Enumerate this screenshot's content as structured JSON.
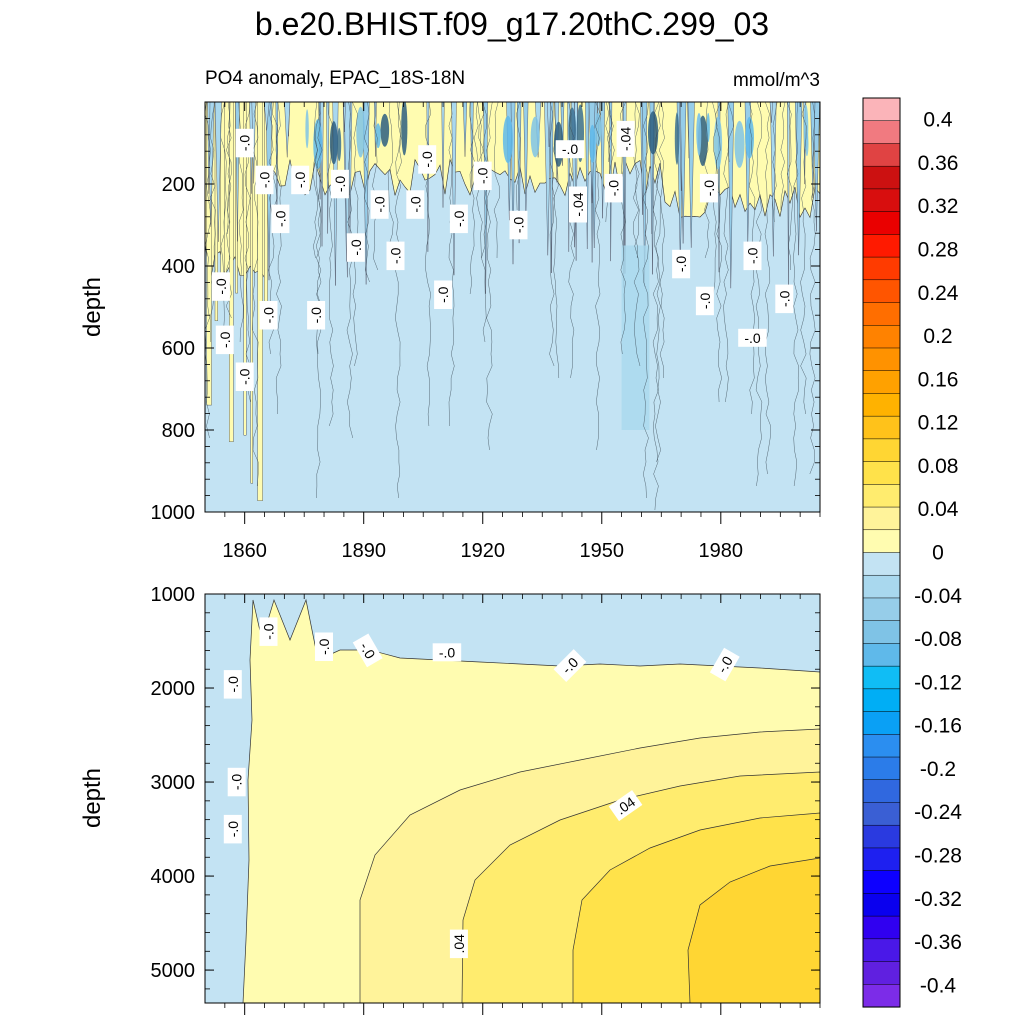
{
  "figure": {
    "title": "b.e20.BHIST.f09_g17.20thC.299_03",
    "subtitle_left": "PO4 anomaly, EPAC_18S-18N",
    "subtitle_right": "mmol/m^3"
  },
  "chart_data": {
    "type": "contour",
    "variable": "PO4 anomaly",
    "region": "EPAC_18S-18N",
    "units": "mmol/m^3",
    "x_range": [
      1850,
      2005
    ],
    "x_ticks": [
      1860,
      1890,
      1920,
      1950,
      1980
    ],
    "x_tick_labels": [
      "1860",
      "1890",
      "1920",
      "1950",
      "1980"
    ],
    "panels": [
      {
        "name": "upper",
        "ylabel": "depth",
        "ylim": [
          0,
          1000
        ],
        "y_ticks": [
          200,
          400,
          600,
          800,
          1000
        ],
        "y_tick_labels": [
          "200",
          "400",
          "600",
          "800",
          "1000"
        ],
        "show_x_labels": true,
        "contour_labels": [
          {
            "text": "-.0",
            "x": 1860,
            "y": 100,
            "angle": -90
          },
          {
            "text": "-.0",
            "x": 1865,
            "y": 190,
            "angle": -90
          },
          {
            "text": "-.0",
            "x": 1874,
            "y": 190,
            "angle": -90
          },
          {
            "text": "-.0",
            "x": 1884,
            "y": 200,
            "angle": -90
          },
          {
            "text": "-.0",
            "x": 1869,
            "y": 285,
            "angle": -90
          },
          {
            "text": "-.0",
            "x": 1894,
            "y": 250,
            "angle": -90
          },
          {
            "text": "-.0",
            "x": 1903,
            "y": 250,
            "angle": -90
          },
          {
            "text": "-.0",
            "x": 1906,
            "y": 140,
            "angle": -90
          },
          {
            "text": "-.0",
            "x": 1920,
            "y": 180,
            "angle": -90
          },
          {
            "text": "-.0",
            "x": 1914,
            "y": 285,
            "angle": -90
          },
          {
            "text": "-.0",
            "x": 1929,
            "y": 300,
            "angle": -90
          },
          {
            "text": "-.0",
            "x": 1888,
            "y": 355,
            "angle": -90
          },
          {
            "text": "-.0",
            "x": 1898,
            "y": 375,
            "angle": -90
          },
          {
            "text": "-.0",
            "x": 1854,
            "y": 450,
            "angle": -90
          },
          {
            "text": "-.0",
            "x": 1866,
            "y": 520,
            "angle": -90
          },
          {
            "text": "-.0",
            "x": 1878,
            "y": 520,
            "angle": -90
          },
          {
            "text": "-.0",
            "x": 1910,
            "y": 470,
            "angle": -90
          },
          {
            "text": "-.0",
            "x": 1855,
            "y": 580,
            "angle": -90
          },
          {
            "text": "-.0",
            "x": 1860,
            "y": 670,
            "angle": -90
          },
          {
            "text": "-.0",
            "x": 1942,
            "y": 115,
            "angle": 0
          },
          {
            "text": "-.04",
            "x": 1956,
            "y": 90,
            "angle": -90
          },
          {
            "text": "-.04",
            "x": 1944,
            "y": 250,
            "angle": -90
          },
          {
            "text": "-.0",
            "x": 1953,
            "y": 210,
            "angle": -90
          },
          {
            "text": "-.0",
            "x": 1977,
            "y": 210,
            "angle": -90
          },
          {
            "text": "-.0",
            "x": 1970,
            "y": 395,
            "angle": -90
          },
          {
            "text": "-.0",
            "x": 1976,
            "y": 485,
            "angle": -90
          },
          {
            "text": "-.0",
            "x": 1988,
            "y": 375,
            "angle": -90
          },
          {
            "text": "-.0",
            "x": 1996,
            "y": 480,
            "angle": -90
          },
          {
            "text": "-.0",
            "x": 1988,
            "y": 575,
            "angle": 0
          }
        ]
      },
      {
        "name": "lower",
        "ylabel": "depth",
        "ylim": [
          1000,
          5350
        ],
        "y_ticks": [
          1000,
          2000,
          3000,
          4000,
          5000
        ],
        "y_tick_labels": [
          "1000",
          "2000",
          "3000",
          "4000",
          "5000"
        ],
        "show_x_labels": false,
        "contour_labels": [
          {
            "text": "-.0",
            "x": 1866,
            "y": 1400,
            "angle": -90
          },
          {
            "text": "-.0",
            "x": 1880,
            "y": 1560,
            "angle": -90
          },
          {
            "text": "-.0",
            "x": 1891,
            "y": 1600,
            "angle": 60
          },
          {
            "text": "-.0",
            "x": 1911,
            "y": 1620,
            "angle": 0
          },
          {
            "text": "-.0",
            "x": 1942,
            "y": 1760,
            "angle": -45
          },
          {
            "text": "-.0",
            "x": 1981,
            "y": 1750,
            "angle": -60
          },
          {
            "text": "-.0",
            "x": 1857,
            "y": 1960,
            "angle": -90
          },
          {
            "text": "-.0",
            "x": 1858,
            "y": 3000,
            "angle": -90
          },
          {
            "text": "-.0",
            "x": 1857,
            "y": 3500,
            "angle": -90
          },
          {
            "text": ".04",
            "x": 1956,
            "y": 3250,
            "angle": -35
          },
          {
            "text": ".04",
            "x": 1914,
            "y": 4720,
            "angle": -90
          }
        ]
      }
    ],
    "colorbar": {
      "min": -0.42,
      "max": 0.42,
      "interval": 0.02,
      "tick_labels": [
        "0.4",
        "0.36",
        "0.32",
        "0.28",
        "0.24",
        "0.2",
        "0.16",
        "0.12",
        "0.08",
        "0.04",
        "0",
        "-0.04",
        "-0.08",
        "-0.12",
        "-0.16",
        "-0.2",
        "-0.24",
        "-0.28",
        "-0.32",
        "-0.36",
        "-0.4"
      ],
      "tick_values": [
        0.4,
        0.36,
        0.32,
        0.28,
        0.24,
        0.2,
        0.16,
        0.12,
        0.08,
        0.04,
        0,
        -0.04,
        -0.08,
        -0.12,
        -0.16,
        -0.2,
        -0.24,
        -0.28,
        -0.32,
        -0.36,
        -0.4
      ],
      "colors_top_to_bottom": [
        "#fbb4b9",
        "#f17a80",
        "#e04343",
        "#cc1111",
        "#d80e0e",
        "#ea0000",
        "#ff1a00",
        "#ff3b00",
        "#ff5500",
        "#ff6e00",
        "#ff8200",
        "#ff9200",
        "#ffa100",
        "#ffb200",
        "#ffc21a",
        "#ffd633",
        "#ffe24a",
        "#ffec6e",
        "#fff39a",
        "#fffcb0",
        "#c3e3f3",
        "#a9d8ee",
        "#96cde9",
        "#7fc3e6",
        "#5fb9ea",
        "#10bdf5",
        "#00aef5",
        "#0aa0f5",
        "#2b8ef0",
        "#2b7ce9",
        "#3068df",
        "#3a5fd4",
        "#2a3ae0",
        "#1e20f0",
        "#0d00ff",
        "#0a00ee",
        "#3000f0",
        "#4a18e8",
        "#6020e0",
        "#7c2ce8"
      ]
    }
  }
}
